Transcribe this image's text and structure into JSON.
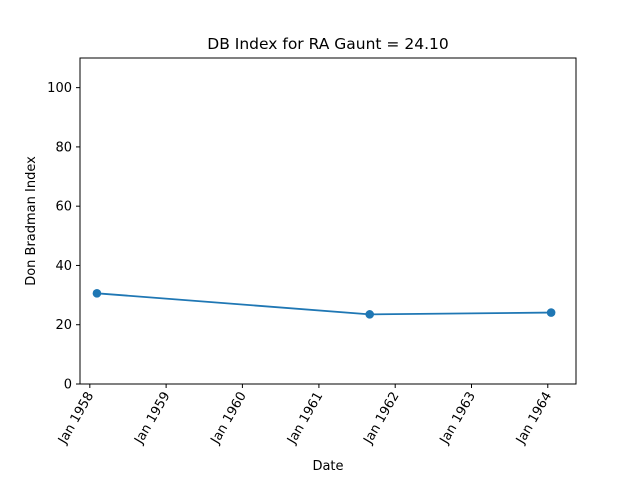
{
  "chart_data": {
    "type": "line",
    "title": "DB Index for RA Gaunt = 24.10",
    "xlabel": "Date",
    "ylabel": "Don Bradman Index",
    "x_ticks": [
      {
        "date": "1958-01-01",
        "label": "Jan 1958"
      },
      {
        "date": "1959-01-01",
        "label": "Jan 1959"
      },
      {
        "date": "1960-01-01",
        "label": "Jan 1960"
      },
      {
        "date": "1961-01-01",
        "label": "Jan 1961"
      },
      {
        "date": "1962-01-01",
        "label": "Jan 1962"
      },
      {
        "date": "1963-01-01",
        "label": "Jan 1963"
      },
      {
        "date": "1964-01-01",
        "label": "Jan 1964"
      }
    ],
    "y_ticks": [
      0,
      20,
      40,
      60,
      80,
      100
    ],
    "xlim": [
      "1957-11-15",
      "1964-05-15"
    ],
    "ylim": [
      0,
      110
    ],
    "grid": false,
    "legend": "none",
    "series": [
      {
        "color": "#1f77b4",
        "marker": "circle",
        "points": [
          {
            "x": "1958-02-04",
            "y": 30.6
          },
          {
            "x": "1961-09-01",
            "y": 23.5
          },
          {
            "x": "1964-01-17",
            "y": 24.1
          }
        ]
      }
    ]
  }
}
